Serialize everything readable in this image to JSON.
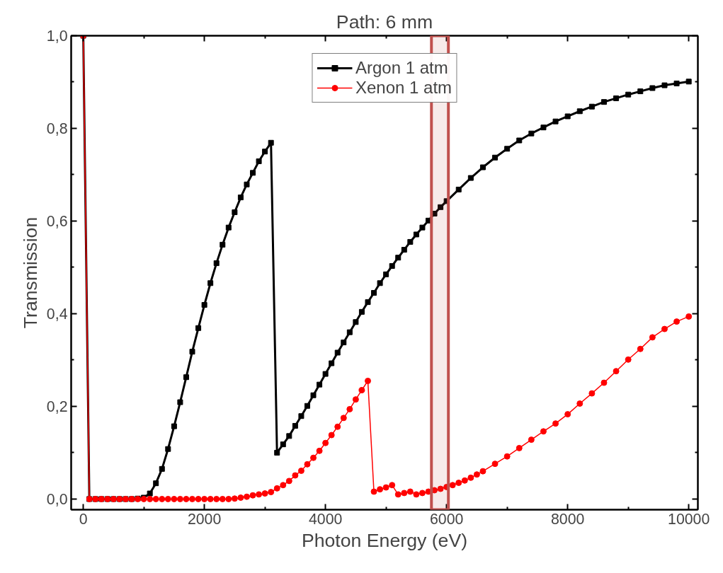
{
  "chart_data": {
    "type": "line",
    "title": "Path: 6 mm",
    "xlabel": "Photon Energy (eV)",
    "ylabel": "Transmission",
    "xlim": [
      -200,
      10150
    ],
    "ylim": [
      -0.023,
      1.0
    ],
    "xticks": [
      0,
      2000,
      4000,
      6000,
      8000,
      10000
    ],
    "yticks": [
      {
        "value": 0,
        "label": "0,0"
      },
      {
        "value": 0.2,
        "label": "0,2"
      },
      {
        "value": 0.4,
        "label": "0,4"
      },
      {
        "value": 0.6,
        "label": "0,6"
      },
      {
        "value": 0.8,
        "label": "0,8"
      },
      {
        "value": 1.0,
        "label": "1,0"
      }
    ],
    "grid": false,
    "legend": "top",
    "bands": [
      {
        "axis": "x",
        "from": 5750,
        "to": 6030,
        "color": "#c0504d"
      }
    ],
    "series": [
      {
        "name": "Argon 1 atm",
        "color": "#000000",
        "marker": "square",
        "x": [
          0,
          100,
          200,
          300,
          400,
          500,
          600,
          700,
          800,
          900,
          1000,
          1100,
          1200,
          1300,
          1400,
          1500,
          1600,
          1700,
          1800,
          1900,
          2000,
          2100,
          2200,
          2300,
          2400,
          2500,
          2600,
          2700,
          2800,
          2900,
          3000,
          3100,
          3200,
          3300,
          3400,
          3500,
          3600,
          3700,
          3800,
          3900,
          4000,
          4100,
          4200,
          4300,
          4400,
          4500,
          4600,
          4700,
          4800,
          4900,
          5000,
          5100,
          5200,
          5300,
          5400,
          5500,
          5600,
          5700,
          5800,
          5900,
          6000,
          6200,
          6400,
          6600,
          6800,
          7000,
          7200,
          7400,
          7600,
          7800,
          8000,
          8200,
          8400,
          8600,
          8800,
          9000,
          9200,
          9400,
          9600,
          9800,
          10000
        ],
        "values": [
          1.0,
          0.0,
          0.0,
          0.0,
          0.0,
          0.0,
          0.0,
          0.0,
          0.0,
          0.001,
          0.003,
          0.012,
          0.034,
          0.065,
          0.108,
          0.157,
          0.209,
          0.263,
          0.318,
          0.369,
          0.419,
          0.466,
          0.509,
          0.549,
          0.586,
          0.619,
          0.651,
          0.679,
          0.704,
          0.729,
          0.75,
          0.769,
          0.1,
          0.118,
          0.136,
          0.158,
          0.179,
          0.201,
          0.224,
          0.247,
          0.27,
          0.293,
          0.316,
          0.338,
          0.36,
          0.382,
          0.404,
          0.425,
          0.445,
          0.466,
          0.485,
          0.503,
          0.521,
          0.538,
          0.555,
          0.571,
          0.586,
          0.601,
          0.616,
          0.63,
          0.643,
          0.668,
          0.693,
          0.716,
          0.737,
          0.756,
          0.774,
          0.789,
          0.802,
          0.815,
          0.826,
          0.837,
          0.847,
          0.857,
          0.865,
          0.873,
          0.88,
          0.887,
          0.893,
          0.897,
          0.901
        ]
      },
      {
        "name": "Xenon 1 atm",
        "color": "#ff0000",
        "marker": "circle",
        "x": [
          0,
          100,
          200,
          300,
          400,
          500,
          600,
          700,
          800,
          900,
          1000,
          1100,
          1200,
          1300,
          1400,
          1500,
          1600,
          1700,
          1800,
          1900,
          2000,
          2100,
          2200,
          2300,
          2400,
          2500,
          2600,
          2700,
          2800,
          2900,
          3000,
          3100,
          3200,
          3300,
          3400,
          3500,
          3600,
          3700,
          3800,
          3900,
          4000,
          4100,
          4200,
          4300,
          4400,
          4500,
          4600,
          4700,
          4800,
          4900,
          5000,
          5100,
          5200,
          5300,
          5400,
          5500,
          5600,
          5700,
          5800,
          5900,
          6000,
          6100,
          6200,
          6300,
          6400,
          6500,
          6600,
          6800,
          7000,
          7200,
          7400,
          7600,
          7800,
          8000,
          8200,
          8400,
          8600,
          8800,
          9000,
          9200,
          9400,
          9600,
          9800,
          10000
        ],
        "values": [
          1.0,
          0.0,
          0.0,
          0.0,
          0.0,
          0.0,
          0.0,
          0.0,
          0.0,
          0.0,
          0.0,
          0.0,
          0.0,
          0.0,
          0.0,
          0.0,
          0.0,
          0.0,
          0.0,
          0.0,
          0.0,
          0.0,
          0.0,
          0.0,
          0.0,
          0.001,
          0.003,
          0.005,
          0.008,
          0.01,
          0.012,
          0.015,
          0.023,
          0.03,
          0.039,
          0.051,
          0.061,
          0.075,
          0.089,
          0.104,
          0.121,
          0.138,
          0.156,
          0.175,
          0.194,
          0.215,
          0.235,
          0.255,
          0.016,
          0.021,
          0.025,
          0.03,
          0.01,
          0.013,
          0.016,
          0.01,
          0.013,
          0.016,
          0.019,
          0.022,
          0.026,
          0.03,
          0.035,
          0.04,
          0.046,
          0.053,
          0.06,
          0.076,
          0.092,
          0.11,
          0.128,
          0.146,
          0.163,
          0.183,
          0.206,
          0.228,
          0.251,
          0.276,
          0.301,
          0.324,
          0.349,
          0.367,
          0.383,
          0.394
        ]
      }
    ]
  }
}
